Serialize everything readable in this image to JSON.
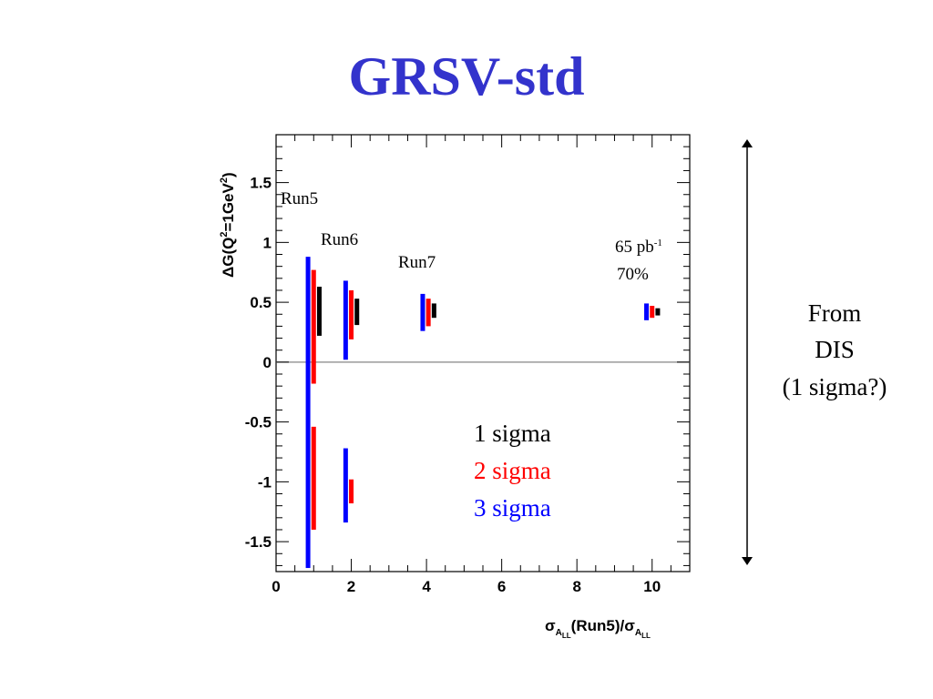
{
  "title": "GRSV-std",
  "colors": {
    "title": "#3333cc",
    "sigma1": "#000000",
    "sigma2": "#ff0000",
    "sigma3": "#0000ff",
    "zero_line": "#999999"
  },
  "chart_data": {
    "type": "error-bar",
    "title": "GRSV-std",
    "xlabel_parts": [
      "σ",
      "A",
      "LL",
      "(Run5)/σ",
      "A",
      "LL"
    ],
    "ylabel_parts": [
      "ΔG(Q",
      "2",
      "=1GeV",
      "2",
      ")"
    ],
    "xlim": [
      0,
      11
    ],
    "ylim": [
      -1.75,
      1.9
    ],
    "xticks": [
      0,
      2,
      4,
      6,
      8,
      10
    ],
    "yticks": [
      -1.5,
      -1,
      -0.5,
      0,
      0.5,
      1,
      1.5
    ],
    "ytick_labels": [
      "-1.5",
      "-1",
      "-0.5",
      "0",
      "0.5",
      "1",
      "1.5"
    ],
    "grid": false,
    "series": [
      {
        "name": "1 sigma",
        "color": "#000000"
      },
      {
        "name": "2 sigma",
        "color": "#ff0000"
      },
      {
        "name": "3 sigma",
        "color": "#0000ff"
      }
    ],
    "intervals": [
      {
        "x": 0.85,
        "sigma": 3,
        "low": -1.72,
        "high": 0.88
      },
      {
        "x": 1.0,
        "sigma": 2,
        "low": -0.18,
        "high": 0.77
      },
      {
        "x": 1.0,
        "sigma": 2,
        "low": -1.4,
        "high": -0.54
      },
      {
        "x": 1.15,
        "sigma": 1,
        "low": 0.22,
        "high": 0.63
      },
      {
        "x": 1.85,
        "sigma": 3,
        "low": 0.02,
        "high": 0.68
      },
      {
        "x": 1.85,
        "sigma": 3,
        "low": -1.34,
        "high": -0.72
      },
      {
        "x": 2.0,
        "sigma": 2,
        "low": 0.19,
        "high": 0.6
      },
      {
        "x": 2.0,
        "sigma": 2,
        "low": -1.18,
        "high": -0.98
      },
      {
        "x": 2.15,
        "sigma": 1,
        "low": 0.31,
        "high": 0.53
      },
      {
        "x": 3.9,
        "sigma": 3,
        "low": 0.26,
        "high": 0.57
      },
      {
        "x": 4.05,
        "sigma": 2,
        "low": 0.3,
        "high": 0.53
      },
      {
        "x": 4.2,
        "sigma": 1,
        "low": 0.37,
        "high": 0.49
      },
      {
        "x": 9.85,
        "sigma": 3,
        "low": 0.35,
        "high": 0.49
      },
      {
        "x": 10.0,
        "sigma": 2,
        "low": 0.37,
        "high": 0.47
      },
      {
        "x": 10.15,
        "sigma": 1,
        "low": 0.39,
        "high": 0.45
      }
    ],
    "annotations": [
      {
        "text": "Run5"
      },
      {
        "text": "Run6"
      },
      {
        "text": "Run7"
      },
      {
        "text": "65 pb",
        "sup": "-1"
      },
      {
        "text": "70%"
      }
    ],
    "legend_entries": [
      "1 sigma",
      "2 sigma",
      "3 sigma"
    ]
  },
  "side_note": {
    "lines": [
      "From",
      "DIS",
      "(1 sigma?)"
    ]
  }
}
